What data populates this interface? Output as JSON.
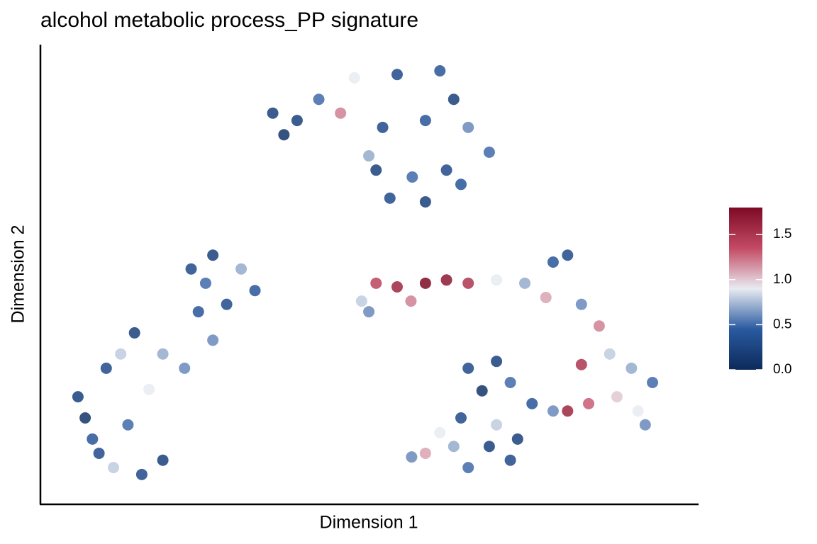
{
  "chart_data": {
    "type": "scatter",
    "title": "alcohol metabolic process_PP signature",
    "x_label": "Dimension 1",
    "y_label": "Dimension 2",
    "x": [
      35.3,
      37,
      42.3,
      47.7,
      54.2,
      60.7,
      62.8,
      65,
      68.2,
      52,
      58.5,
      51,
      56.5,
      61.7,
      53.1,
      58.5,
      63.9,
      49.9,
      45.6,
      39,
      5.7,
      7.9,
      11.1,
      15.4,
      18.6,
      13.3,
      10,
      14.3,
      18.6,
      21.9,
      16.5,
      6.8,
      26.2,
      24,
      22.9,
      26.2,
      30.5,
      32.6,
      28.3,
      25.1,
      12.2,
      8.9,
      48.8,
      51,
      54.2,
      58.5,
      61.7,
      65,
      56.3,
      49.9,
      69.3,
      73.6,
      77.9,
      80.1,
      76.8,
      82.2,
      84.9,
      86.5,
      89.8,
      93,
      90.8,
      87.6,
      83.3,
      80.1,
      82.2,
      91.9,
      65,
      69.3,
      71.4,
      67.1,
      74.7,
      77.9,
      63.9,
      69.3,
      72.5,
      62.8,
      58.5,
      65,
      71.4,
      60.7,
      56.4,
      68.2
    ],
    "y": [
      85.1,
      80.4,
      88.1,
      92.8,
      93.5,
      94.3,
      88.1,
      82,
      76.6,
      82,
      83.5,
      72.7,
      71.2,
      72.7,
      66.6,
      65.8,
      69.6,
      75.8,
      85.1,
      83.5,
      23.4,
      14.2,
      8,
      6.5,
      9.6,
      17.3,
      29.6,
      37.3,
      32.7,
      29.6,
      25,
      18.8,
      35.7,
      41.9,
      51.2,
      54.2,
      51.2,
      46.5,
      43.5,
      48.1,
      32.7,
      11.1,
      44.2,
      48.1,
      47.3,
      48.1,
      48.8,
      48.1,
      44.2,
      41.9,
      48.8,
      48.1,
      52.7,
      54.2,
      45,
      43.5,
      38.8,
      32.7,
      29.6,
      26.5,
      20.3,
      23.4,
      21.9,
      20.3,
      30.4,
      17.3,
      29.6,
      31.1,
      26.5,
      24.7,
      21.9,
      20.3,
      18.8,
      17.3,
      14.2,
      12.6,
      11.1,
      8,
      9.6,
      15.6,
      10.3,
      12.6
    ],
    "values": [
      0.2,
      0.1,
      0.5,
      0.9,
      0.3,
      0.4,
      0.2,
      0.6,
      0.5,
      0.3,
      0.4,
      0.2,
      0.5,
      0.3,
      0.3,
      0.2,
      0.4,
      0.7,
      1.2,
      0.2,
      0.2,
      0.4,
      0.8,
      0.3,
      0.2,
      0.5,
      0.3,
      0.2,
      0.7,
      0.6,
      0.9,
      0.1,
      0.6,
      0.4,
      0.3,
      0.2,
      0.7,
      0.4,
      0.3,
      0.5,
      0.8,
      0.3,
      0.8,
      1.4,
      1.6,
      1.8,
      1.7,
      1.5,
      1.2,
      0.6,
      0.9,
      0.7,
      0.4,
      0.3,
      1.1,
      0.6,
      1.2,
      0.8,
      0.7,
      0.5,
      0.9,
      1,
      1.3,
      1.6,
      1.5,
      0.6,
      0.3,
      0.2,
      0.5,
      0.1,
      0.4,
      0.6,
      0.3,
      0.8,
      0.2,
      0.7,
      1.1,
      0.5,
      0.3,
      0.9,
      0.6,
      0.2
    ],
    "xlim": [
      0,
      100
    ],
    "ylim": [
      0,
      100
    ],
    "colorbar": {
      "lim": [
        0,
        1.8
      ],
      "ticks": [
        {
          "value": 0,
          "label": "0.0"
        },
        {
          "value": 0.5,
          "label": "0.5"
        },
        {
          "value": 1,
          "label": "1.0"
        },
        {
          "value": 1.5,
          "label": "1.5"
        }
      ],
      "colors": [
        "#0c2a5b",
        "#2a5aa0",
        "#e8ebf1",
        "#c34a64",
        "#7d0a25"
      ]
    }
  }
}
